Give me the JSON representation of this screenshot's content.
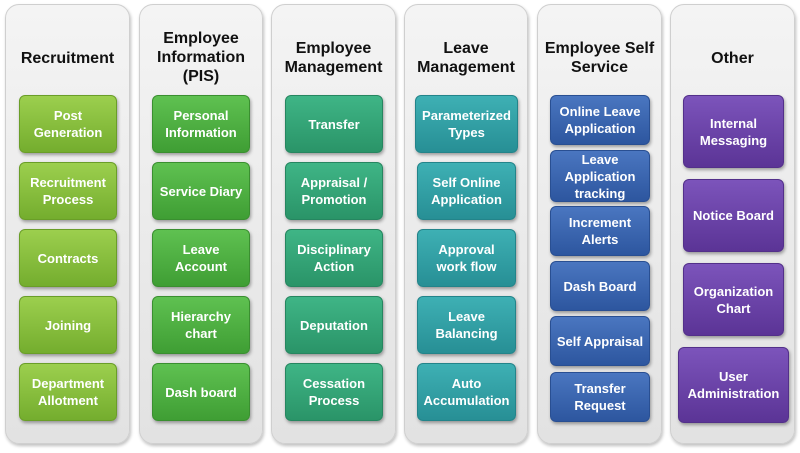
{
  "columns": [
    {
      "title": "Recruitment",
      "items": [
        "Post Generation",
        "Recruitment Process",
        "Contracts",
        "Joining",
        "Department Allotment"
      ]
    },
    {
      "title": "Employee Information (PIS)",
      "items": [
        "Personal Information",
        "Service Diary",
        "Leave Account",
        "Hierarchy chart",
        "Dash board"
      ]
    },
    {
      "title": "Employee Management",
      "items": [
        "Transfer",
        "Appraisal / Promotion",
        "Disciplinary Action",
        "Deputation",
        "Cessation Process"
      ]
    },
    {
      "title": "Leave Management",
      "items": [
        "Parameterized Types",
        "Self Online Application",
        "Approval work flow",
        "Leave Balancing",
        "Auto Accumulation"
      ]
    },
    {
      "title": "Employee Self Service",
      "items": [
        "Online Leave Application",
        "Leave Application tracking",
        "Increment Alerts",
        "Dash Board",
        "Self Appraisal",
        "Transfer Request"
      ]
    },
    {
      "title": "Other",
      "items": [
        "Internal Messaging",
        "Notice Board",
        "Organization Chart",
        "User Administration"
      ]
    }
  ],
  "colors": {
    "recruitment": "#8cc444",
    "employee_information": "#4eb444",
    "employee_management": "#34a87a",
    "leave_management": "#34a2a8",
    "employee_self_service": "#3a66b0",
    "other": "#6c44a8"
  }
}
